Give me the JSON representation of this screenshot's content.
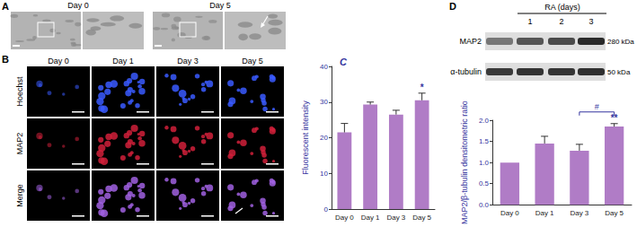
{
  "panels": {
    "A": {
      "label": "A",
      "images": [
        "Day 0",
        "Day 5"
      ]
    },
    "B": {
      "label": "B",
      "columns": [
        "Day 0",
        "Day 1",
        "Day 3",
        "Day 5"
      ],
      "rows": [
        "Hoechst",
        "MAP2",
        "Merge"
      ]
    },
    "D_blot": {
      "label": "D",
      "treatment": "RA (days)",
      "lanes": [
        null,
        "1",
        "2",
        "3"
      ],
      "rows": [
        {
          "name": "MAP2",
          "size": "280 kDa"
        },
        {
          "name": "α-tubulin",
          "size": "50 kDa"
        }
      ]
    }
  },
  "chart_data": [
    {
      "type": "bar",
      "title": "C",
      "categories": [
        "Day 0",
        "Day 1",
        "Day 3",
        "Day 5"
      ],
      "values": [
        21.5,
        29.3,
        26.5,
        30.5
      ],
      "errors": [
        2.5,
        0.7,
        1.2,
        2.0
      ],
      "color": "#b07cc6",
      "ylabel": "Fluorescent intensity",
      "ylim": [
        0,
        40
      ],
      "yticks": [
        0,
        10,
        20,
        30,
        40
      ],
      "annotations": [
        {
          "category": "Day 5",
          "text": "*"
        }
      ]
    },
    {
      "type": "bar",
      "categories": [
        "Day 0",
        "Day 1",
        "Day 3",
        "Day 5"
      ],
      "values": [
        1.0,
        1.45,
        1.28,
        1.85
      ],
      "errors": [
        0,
        0.17,
        0.15,
        0.07
      ],
      "color": "#b07cc6",
      "ylabel": "MAP2/β-tubulin densitometric ratio",
      "ylim": [
        0,
        2
      ],
      "yticks": [
        {
          "value": 0,
          "label": "0.0"
        },
        0.5,
        {
          "value": 1,
          "label": "1.0"
        },
        1.5,
        {
          "value": 2,
          "label": "2.0"
        }
      ],
      "annotations": [
        {
          "category": "Day 5",
          "text": "**"
        },
        {
          "from": "Day 3",
          "to": "Day 5",
          "text": "#"
        }
      ]
    }
  ]
}
